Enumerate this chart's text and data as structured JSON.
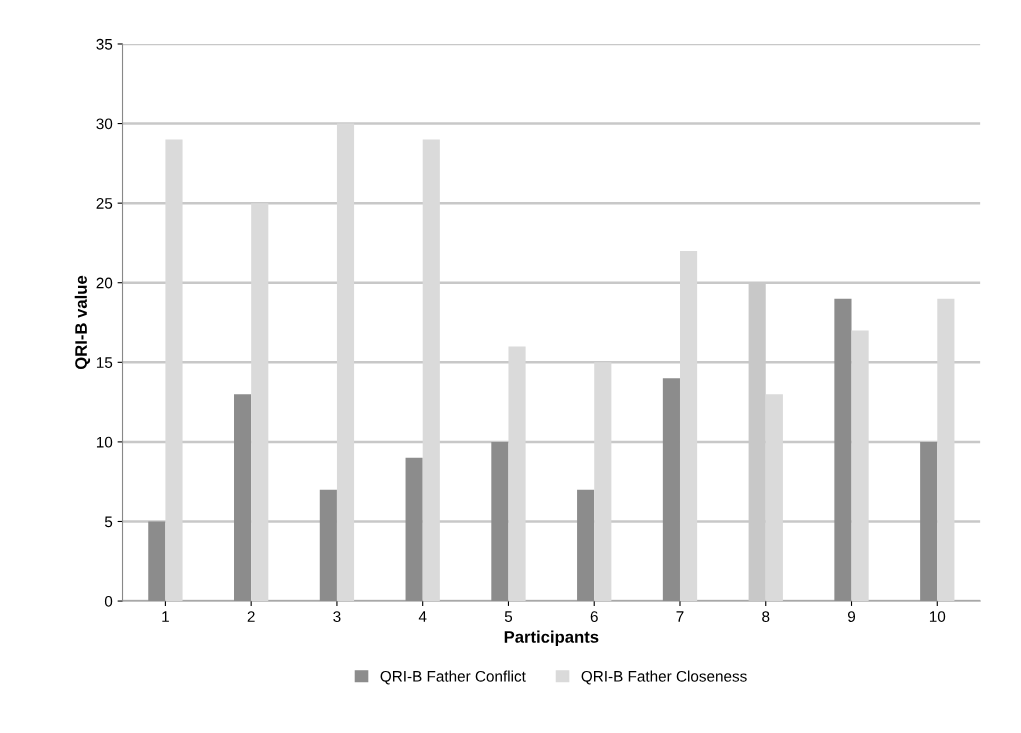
{
  "chart_data": {
    "type": "bar",
    "xlabel": "Participants",
    "ylabel": "QRI-B value",
    "categories": [
      "1",
      "2",
      "3",
      "4",
      "5",
      "6",
      "7",
      "8",
      "9",
      "10"
    ],
    "series": [
      {
        "name": "QRI-B Father Conflict",
        "color": "#8c8c8c",
        "colors": [
          "#8c8c8c",
          "#8c8c8c",
          "#8c8c8c",
          "#8c8c8c",
          "#8c8c8c",
          "#8c8c8c",
          "#8c8c8c",
          "#c8c8c8",
          "#8c8c8c",
          "#8c8c8c"
        ],
        "values": [
          5,
          13,
          7,
          9,
          10,
          7,
          14,
          20,
          19,
          10
        ]
      },
      {
        "name": "QRI-B Father Closeness",
        "color": "#dadada",
        "values": [
          29,
          25,
          30,
          29,
          16,
          15,
          22,
          13,
          17,
          19
        ]
      }
    ],
    "ylim": [
      0,
      35
    ],
    "yticks": [
      0,
      5,
      10,
      15,
      20,
      25,
      30,
      35
    ],
    "grid": "y",
    "legend": "bottom"
  }
}
